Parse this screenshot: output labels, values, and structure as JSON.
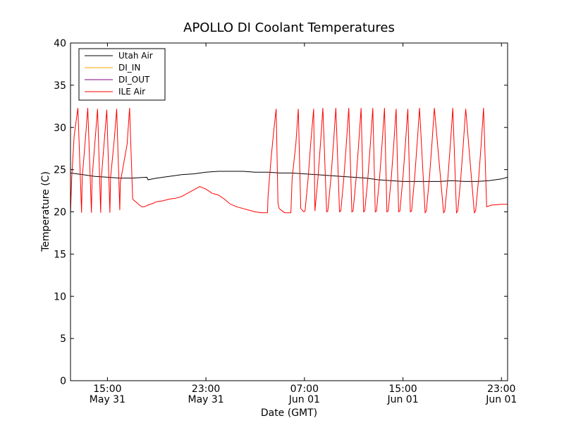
{
  "chart_data": {
    "type": "line",
    "title": "APOLLO DI Coolant Temperatures",
    "xlabel": "Date (GMT)",
    "ylabel": "Temperature (C)",
    "xlim": [
      12.0,
      47.5
    ],
    "ylim": [
      0,
      40
    ],
    "x_unit": "hours since 2012-05-31 00:00 GMT",
    "yticks": [
      0,
      5,
      10,
      15,
      20,
      25,
      30,
      35,
      40
    ],
    "xticks": [
      {
        "x": 15,
        "time": "15:00",
        "date": "May 31"
      },
      {
        "x": 23,
        "time": "23:00",
        "date": "May 31"
      },
      {
        "x": 31,
        "time": "07:00",
        "date": "Jun 01"
      },
      {
        "x": 39,
        "time": "15:00",
        "date": "Jun 01"
      },
      {
        "x": 47,
        "time": "23:00",
        "date": "Jun 01"
      }
    ],
    "legend_position": "top-left",
    "series": [
      {
        "name": "Utah Air",
        "color": "#000000",
        "x": [
          12.0,
          13.0,
          14.0,
          15.0,
          16.0,
          17.0,
          18.2,
          18.3,
          19.0,
          20.0,
          21.0,
          22.0,
          23.0,
          24.0,
          25.0,
          26.0,
          27.0,
          28.0,
          29.0,
          30.0,
          31.0,
          32.0,
          33.0,
          34.0,
          35.0,
          36.0,
          37.0,
          38.0,
          39.0,
          40.0,
          41.0,
          42.0,
          43.0,
          44.0,
          45.0,
          46.0,
          47.0,
          47.5
        ],
        "values": [
          24.6,
          24.4,
          24.2,
          24.1,
          24.0,
          24.0,
          24.1,
          23.8,
          24.0,
          24.2,
          24.4,
          24.5,
          24.7,
          24.8,
          24.8,
          24.8,
          24.7,
          24.7,
          24.6,
          24.6,
          24.5,
          24.4,
          24.3,
          24.2,
          24.1,
          24.0,
          23.8,
          23.7,
          23.6,
          23.6,
          23.6,
          23.6,
          23.7,
          23.6,
          23.6,
          23.7,
          23.9,
          24.1
        ]
      },
      {
        "name": "DI_IN",
        "color": "#ffa500",
        "x": [],
        "values": []
      },
      {
        "name": "DI_OUT",
        "color": "#800080",
        "x": [],
        "values": []
      },
      {
        "name": "ILE Air",
        "color": "#ff0000",
        "x": [
          12.0,
          12.1,
          12.3,
          12.6,
          12.9,
          12.95,
          13.2,
          13.4,
          13.7,
          13.75,
          14.0,
          14.2,
          14.45,
          14.5,
          14.75,
          14.95,
          15.2,
          15.25,
          15.55,
          15.75,
          16.0,
          16.05,
          16.6,
          16.8,
          17.05,
          17.6,
          17.7,
          17.8,
          18.0,
          18.3,
          18.7,
          19.0,
          19.5,
          20.0,
          20.5,
          21.0,
          21.5,
          22.0,
          22.5,
          23.0,
          23.5,
          24.0,
          24.5,
          25.0,
          25.5,
          26.0,
          26.5,
          27.0,
          27.5,
          28.0,
          28.05,
          28.3,
          28.5,
          28.7,
          28.85,
          28.95,
          29.2,
          29.4,
          29.9,
          30.0,
          30.3,
          30.5,
          30.7,
          30.95,
          31.05,
          31.3,
          31.5,
          31.75,
          31.85,
          32.1,
          32.3,
          32.5,
          32.8,
          32.9,
          33.15,
          33.35,
          33.55,
          33.85,
          33.95,
          34.2,
          34.4,
          34.6,
          34.85,
          34.95,
          35.2,
          35.4,
          35.6,
          35.8,
          35.9,
          36.15,
          36.35,
          36.55,
          36.75,
          36.85,
          37.1,
          37.3,
          37.5,
          37.7,
          37.8,
          38.05,
          38.25,
          38.45,
          38.65,
          38.75,
          39.0,
          39.2,
          39.4,
          39.6,
          39.7,
          39.95,
          40.15,
          40.35,
          40.8,
          40.9,
          41.15,
          41.35,
          41.55,
          42.3,
          42.4,
          42.65,
          42.85,
          43.05,
          43.35,
          43.45,
          43.7,
          43.9,
          44.1,
          44.8,
          44.9,
          45.15,
          45.35,
          45.55,
          45.8,
          46.2,
          47.0,
          47.5
        ],
        "values": [
          19.8,
          24.0,
          29.0,
          32.3,
          19.9,
          24.0,
          28.5,
          32.3,
          19.9,
          24.0,
          28.5,
          32.2,
          19.9,
          24.0,
          28.5,
          32.1,
          19.9,
          24.0,
          28.5,
          32.2,
          20.2,
          23.5,
          28.0,
          32.3,
          21.5,
          20.8,
          20.7,
          20.6,
          20.6,
          20.8,
          21.0,
          21.2,
          21.3,
          21.5,
          21.6,
          21.8,
          22.2,
          22.6,
          23.0,
          22.7,
          22.2,
          22.0,
          21.5,
          20.9,
          20.6,
          20.4,
          20.2,
          20.0,
          19.9,
          19.9,
          22.0,
          26.5,
          29.5,
          32.2,
          21.0,
          20.4,
          20.1,
          19.9,
          19.9,
          24.0,
          28.0,
          32.2,
          20.4,
          20.0,
          20.1,
          24.0,
          28.0,
          32.2,
          20.1,
          24.0,
          28.0,
          32.3,
          20.0,
          20.1,
          24.0,
          28.0,
          32.3,
          20.0,
          20.1,
          24.0,
          28.0,
          32.3,
          20.0,
          20.1,
          24.0,
          28.0,
          32.3,
          20.0,
          20.1,
          24.0,
          28.0,
          32.3,
          20.0,
          20.1,
          24.0,
          28.0,
          32.3,
          20.0,
          20.1,
          24.0,
          28.0,
          32.2,
          20.0,
          20.1,
          24.0,
          28.0,
          32.2,
          20.0,
          20.1,
          24.0,
          28.0,
          32.3,
          19.9,
          20.1,
          24.0,
          28.0,
          32.3,
          19.9,
          20.1,
          24.0,
          28.0,
          32.3,
          19.9,
          20.1,
          24.0,
          28.0,
          32.2,
          19.9,
          20.1,
          24.0,
          28.0,
          32.3,
          20.6,
          20.8,
          20.9,
          20.9
        ]
      }
    ]
  }
}
